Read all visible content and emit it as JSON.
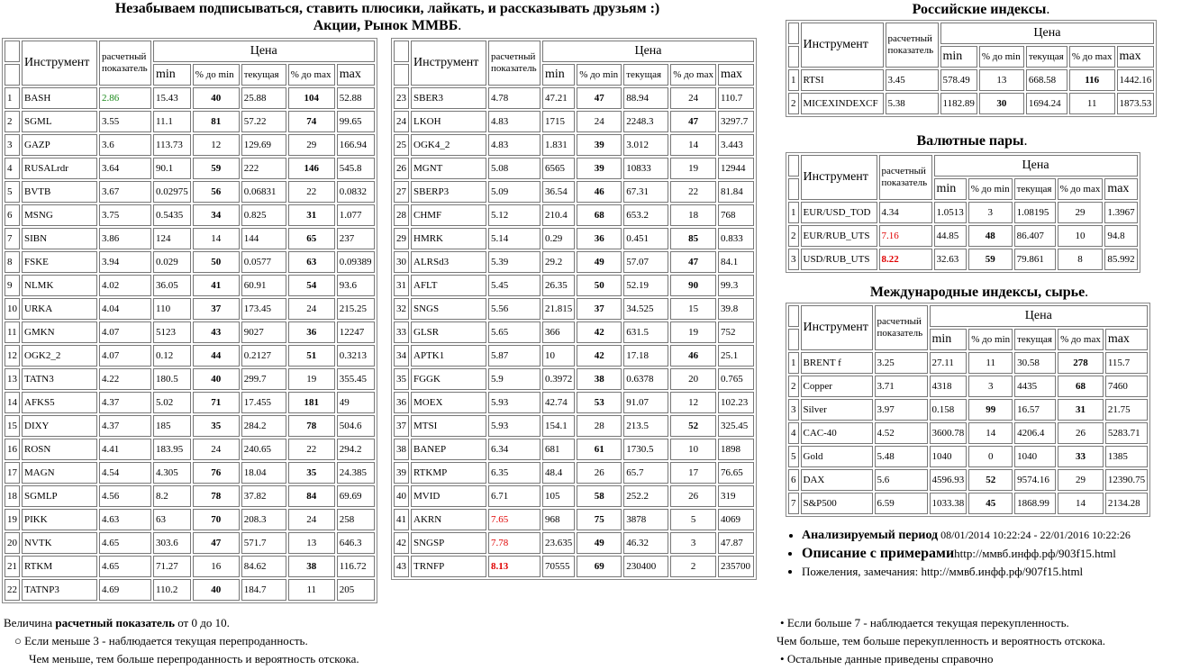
{
  "header": {
    "line1": "Незабываем подписываться, ставить плюсики, лайкать, и рассказывать друзьям :)",
    "line2": "Акции, Рынок ММВБ",
    "dot": "."
  },
  "columns": {
    "instrument": "Инструмент",
    "calc1": "расчетный",
    "calc2": "показатель",
    "price": "Цена",
    "min": "min",
    "pmin": "% до min",
    "cur": "текущая",
    "pmax": "% до max",
    "max": "max"
  },
  "colors": {
    "low": "#1a8a1a",
    "high": "#e00000"
  },
  "stocks_left": [
    [
      "1",
      "BASH",
      "2.86",
      "15.43",
      "40",
      "25.88",
      "104",
      "52.88"
    ],
    [
      "2",
      "SGML",
      "3.55",
      "11.1",
      "81",
      "57.22",
      "74",
      "99.65"
    ],
    [
      "3",
      "GAZP",
      "3.6",
      "113.73",
      "12",
      "129.69",
      "29",
      "166.94"
    ],
    [
      "4",
      "RUSALrdr",
      "3.64",
      "90.1",
      "59",
      "222",
      "146",
      "545.8"
    ],
    [
      "5",
      "BVTB",
      "3.67",
      "0.02975",
      "56",
      "0.06831",
      "22",
      "0.0832"
    ],
    [
      "6",
      "MSNG",
      "3.75",
      "0.5435",
      "34",
      "0.825",
      "31",
      "1.077"
    ],
    [
      "7",
      "SIBN",
      "3.86",
      "124",
      "14",
      "144",
      "65",
      "237"
    ],
    [
      "8",
      "FSKE",
      "3.94",
      "0.029",
      "50",
      "0.0577",
      "63",
      "0.09389"
    ],
    [
      "9",
      "NLMK",
      "4.02",
      "36.05",
      "41",
      "60.91",
      "54",
      "93.6"
    ],
    [
      "10",
      "URKA",
      "4.04",
      "110",
      "37",
      "173.45",
      "24",
      "215.25"
    ],
    [
      "11",
      "GMKN",
      "4.07",
      "5123",
      "43",
      "9027",
      "36",
      "12247"
    ],
    [
      "12",
      "OGK2_2",
      "4.07",
      "0.12",
      "44",
      "0.2127",
      "51",
      "0.3213"
    ],
    [
      "13",
      "TATN3",
      "4.22",
      "180.5",
      "40",
      "299.7",
      "19",
      "355.45"
    ],
    [
      "14",
      "AFKS5",
      "4.37",
      "5.02",
      "71",
      "17.455",
      "181",
      "49"
    ],
    [
      "15",
      "DIXY",
      "4.37",
      "185",
      "35",
      "284.2",
      "78",
      "504.6"
    ],
    [
      "16",
      "ROSN",
      "4.41",
      "183.95",
      "24",
      "240.65",
      "22",
      "294.2"
    ],
    [
      "17",
      "MAGN",
      "4.54",
      "4.305",
      "76",
      "18.04",
      "35",
      "24.385"
    ],
    [
      "18",
      "SGMLP",
      "4.56",
      "8.2",
      "78",
      "37.82",
      "84",
      "69.69"
    ],
    [
      "19",
      "PIKK",
      "4.63",
      "63",
      "70",
      "208.3",
      "24",
      "258"
    ],
    [
      "20",
      "NVTK",
      "4.65",
      "303.6",
      "47",
      "571.7",
      "13",
      "646.3"
    ],
    [
      "21",
      "RTKM",
      "4.65",
      "71.27",
      "16",
      "84.62",
      "38",
      "116.72"
    ],
    [
      "22",
      "TATNP3",
      "4.69",
      "110.2",
      "40",
      "184.7",
      "11",
      "205"
    ]
  ],
  "stocks_right": [
    [
      "23",
      "SBER3",
      "4.78",
      "47.21",
      "47",
      "88.94",
      "24",
      "110.7"
    ],
    [
      "24",
      "LKOH",
      "4.83",
      "1715",
      "24",
      "2248.3",
      "47",
      "3297.7"
    ],
    [
      "25",
      "OGK4_2",
      "4.83",
      "1.831",
      "39",
      "3.012",
      "14",
      "3.443"
    ],
    [
      "26",
      "MGNT",
      "5.08",
      "6565",
      "39",
      "10833",
      "19",
      "12944"
    ],
    [
      "27",
      "SBERP3",
      "5.09",
      "36.54",
      "46",
      "67.31",
      "22",
      "81.84"
    ],
    [
      "28",
      "CHMF",
      "5.12",
      "210.4",
      "68",
      "653.2",
      "18",
      "768"
    ],
    [
      "29",
      "HMRK",
      "5.14",
      "0.29",
      "36",
      "0.451",
      "85",
      "0.833"
    ],
    [
      "30",
      "ALRSd3",
      "5.39",
      "29.2",
      "49",
      "57.07",
      "47",
      "84.1"
    ],
    [
      "31",
      "AFLT",
      "5.45",
      "26.35",
      "50",
      "52.19",
      "90",
      "99.3"
    ],
    [
      "32",
      "SNGS",
      "5.56",
      "21.815",
      "37",
      "34.525",
      "15",
      "39.8"
    ],
    [
      "33",
      "GLSR",
      "5.65",
      "366",
      "42",
      "631.5",
      "19",
      "752"
    ],
    [
      "34",
      "APTK1",
      "5.87",
      "10",
      "42",
      "17.18",
      "46",
      "25.1"
    ],
    [
      "35",
      "FGGK",
      "5.9",
      "0.3972",
      "38",
      "0.6378",
      "20",
      "0.765"
    ],
    [
      "36",
      "MOEX",
      "5.93",
      "42.74",
      "53",
      "91.07",
      "12",
      "102.23"
    ],
    [
      "37",
      "MTSI",
      "5.93",
      "154.1",
      "28",
      "213.5",
      "52",
      "325.45"
    ],
    [
      "38",
      "BANEP",
      "6.34",
      "681",
      "61",
      "1730.5",
      "10",
      "1898"
    ],
    [
      "39",
      "RTKMP",
      "6.35",
      "48.4",
      "26",
      "65.7",
      "17",
      "76.65"
    ],
    [
      "40",
      "MVID",
      "6.71",
      "105",
      "58",
      "252.2",
      "26",
      "319"
    ],
    [
      "41",
      "AKRN",
      "7.65",
      "968",
      "75",
      "3878",
      "5",
      "4069"
    ],
    [
      "42",
      "SNGSP",
      "7.78",
      "23.635",
      "49",
      "46.32",
      "3",
      "47.87"
    ],
    [
      "43",
      "TRNFP",
      "8.13",
      "70555",
      "69",
      "230400",
      "2",
      "235700"
    ]
  ],
  "ru_indices": {
    "title": "Российские индексы",
    "rows": [
      [
        "1",
        "RTSI",
        "3.45",
        "578.49",
        "13",
        "668.58",
        "116",
        "1442.16"
      ],
      [
        "2",
        "MICEXINDEXCF",
        "5.38",
        "1182.89",
        "30",
        "1694.24",
        "11",
        "1873.53"
      ]
    ]
  },
  "fx": {
    "title": "Валютные пары",
    "rows": [
      [
        "1",
        "EUR/USD_TOD",
        "4.34",
        "1.0513",
        "3",
        "1.08195",
        "29",
        "1.3967"
      ],
      [
        "2",
        "EUR/RUB_UTS",
        "7.16",
        "44.85",
        "48",
        "86.407",
        "10",
        "94.8"
      ],
      [
        "3",
        "USD/RUB_UTS",
        "8.22",
        "32.63",
        "59",
        "79.861",
        "8",
        "85.992"
      ]
    ]
  },
  "intl": {
    "title": "Международные индексы, сырье",
    "rows": [
      [
        "1",
        "BRENT f",
        "3.25",
        "27.11",
        "11",
        "30.58",
        "278",
        "115.7"
      ],
      [
        "2",
        "Copper",
        "3.71",
        "4318",
        "3",
        "4435",
        "68",
        "7460"
      ],
      [
        "3",
        "Silver",
        "3.97",
        "0.158",
        "99",
        "16.57",
        "31",
        "21.75"
      ],
      [
        "4",
        "CAC-40",
        "4.52",
        "3600.78",
        "14",
        "4206.4",
        "26",
        "5283.71"
      ],
      [
        "5",
        "Gold",
        "5.48",
        "1040",
        "0",
        "1040",
        "33",
        "1385"
      ],
      [
        "6",
        "DAX",
        "5.6",
        "4596.93",
        "52",
        "9574.16",
        "29",
        "12390.75"
      ],
      [
        "7",
        "S&P500",
        "6.59",
        "1033.38",
        "45",
        "1868.99",
        "14",
        "2134.28"
      ]
    ]
  },
  "info": {
    "period_label": "Анализируемый период",
    "period_value": " 08/01/2014 10:22:24 - 22/01/2016 10:22:26",
    "desc_label": "Описание с примерами",
    "desc_link": "http://ммвб.инфф.рф/903f15.html",
    "wish_label": "Пожеления, замечания: ",
    "wish_link": "http://ммвб.инфф.рф/907f15.html"
  },
  "footer": {
    "l1a": "Величина ",
    "l1b": "расчетный показатель",
    "l1c": " от 0 до 10.",
    "l2": "Если меньше 3 - наблюдается текущая перепроданность.",
    "l3": "Чем меньше, тем больше перепроданность и вероятность отскока.",
    "r1": "Если больше 7 - наблюдается текущая перекупленность.",
    "r2": "Чем больше, тем больше перекупленность и вероятность отскока.",
    "r3": "Остальные данные приведены справочно"
  }
}
